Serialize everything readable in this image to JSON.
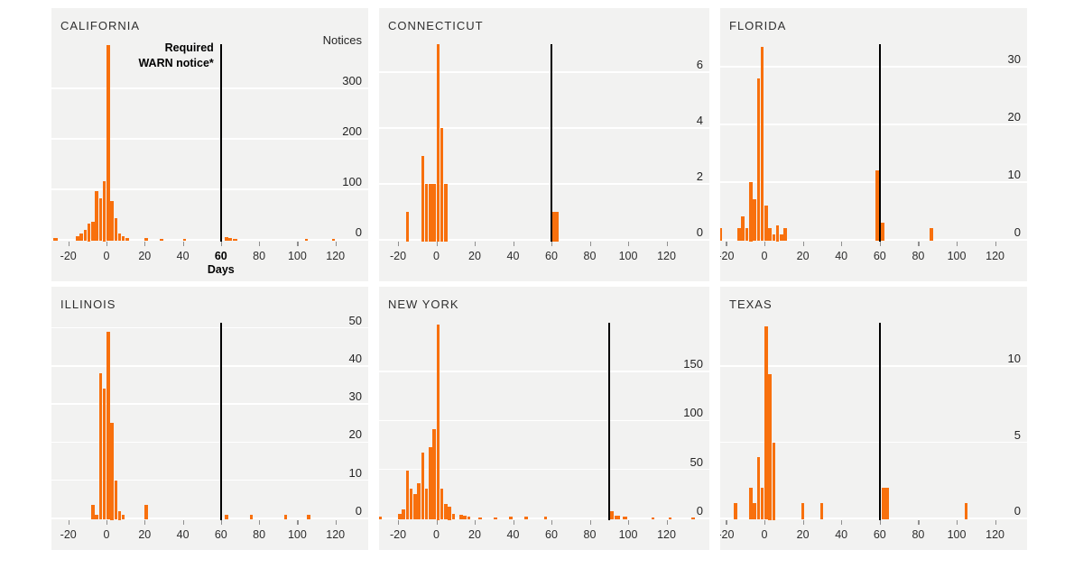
{
  "chart_data": {
    "type": "histogram-small-multiples",
    "description": "Distribution of days of advance notice given, by state, vs required WARN notice deadline",
    "x_ticks": [
      -20,
      0,
      20,
      40,
      60,
      80,
      100,
      120
    ],
    "x_axis_unit_label": "Days",
    "y_axis_title": "Notices",
    "annotation": {
      "line1": "Required",
      "line2": "WARN notice*"
    },
    "colors": {
      "bar": "#f8700d",
      "deadline_line": "#000000",
      "panel_bg": "#f2f2f1",
      "grid": "#ffffff"
    },
    "xlim": [
      -30,
      135
    ],
    "legend": "none",
    "panels": [
      {
        "state": "CALIFORNIA",
        "vline_day": 60,
        "bold_tick": 60,
        "show_notices_title": true,
        "show_annotation": true,
        "show_days_label": true,
        "y_ticks": [
          0,
          100,
          200,
          300
        ],
        "bins": [
          [
            -28,
            3,
            3
          ],
          [
            -16,
            2,
            7
          ],
          [
            -14,
            2,
            13
          ],
          [
            -12,
            2,
            20
          ],
          [
            -10,
            2,
            33
          ],
          [
            -8,
            2,
            35
          ],
          [
            -6,
            2,
            97
          ],
          [
            -4,
            2,
            82
          ],
          [
            -2,
            2,
            117
          ],
          [
            0,
            2,
            385
          ],
          [
            2,
            2,
            76
          ],
          [
            4,
            2,
            43
          ],
          [
            6,
            2,
            13
          ],
          [
            8,
            2,
            7
          ],
          [
            10,
            2,
            4
          ],
          [
            20,
            2,
            3
          ],
          [
            28,
            2,
            2
          ],
          [
            40,
            2,
            2
          ],
          [
            62,
            2,
            5
          ],
          [
            64,
            2,
            3
          ],
          [
            66,
            3,
            2
          ],
          [
            104,
            2,
            2
          ],
          [
            118,
            2,
            1
          ]
        ]
      },
      {
        "state": "CONNECTICUT",
        "vline_day": 60,
        "bold_tick": null,
        "show_notices_title": false,
        "show_annotation": false,
        "show_days_label": false,
        "y_ticks": [
          0,
          2,
          4,
          6
        ],
        "bins": [
          [
            -16,
            2,
            1
          ],
          [
            -8,
            2,
            3
          ],
          [
            -6,
            2,
            2
          ],
          [
            -4,
            2,
            2
          ],
          [
            -2,
            2,
            2
          ],
          [
            0,
            2,
            7
          ],
          [
            2,
            2,
            4
          ],
          [
            4,
            2,
            2
          ],
          [
            60.5,
            3.5,
            1
          ]
        ]
      },
      {
        "state": "FLORIDA",
        "vline_day": 60,
        "bold_tick": null,
        "show_notices_title": false,
        "show_annotation": false,
        "show_days_label": false,
        "y_ticks": [
          0,
          10,
          20,
          30
        ],
        "bins": [
          [
            -24,
            2,
            2
          ],
          [
            -14,
            2,
            2
          ],
          [
            -12,
            2,
            4
          ],
          [
            -10,
            2,
            2
          ],
          [
            -8,
            2,
            10
          ],
          [
            -6,
            2,
            7
          ],
          [
            -4,
            2,
            28
          ],
          [
            -2,
            2,
            33.5
          ],
          [
            0,
            2,
            6
          ],
          [
            2,
            2,
            2
          ],
          [
            4,
            2,
            1
          ],
          [
            6,
            2,
            2.5
          ],
          [
            8,
            2,
            1
          ],
          [
            10,
            2,
            2
          ],
          [
            57.6,
            2.4,
            12
          ],
          [
            60.2,
            2.6,
            3
          ],
          [
            86,
            2,
            2
          ]
        ]
      },
      {
        "state": "ILLINOIS",
        "vline_day": 60,
        "bold_tick": null,
        "show_notices_title": false,
        "show_annotation": false,
        "show_days_label": false,
        "y_ticks": [
          0,
          10,
          20,
          30,
          40,
          50
        ],
        "bins": [
          [
            -8,
            2,
            3.5
          ],
          [
            -6,
            2,
            1
          ],
          [
            -4,
            2,
            38
          ],
          [
            -2,
            2,
            34
          ],
          [
            0,
            2,
            49
          ],
          [
            2,
            2,
            25
          ],
          [
            4,
            2,
            10
          ],
          [
            6,
            2,
            2
          ],
          [
            8,
            2,
            1
          ],
          [
            20,
            2,
            3.5
          ],
          [
            62,
            2,
            1
          ],
          [
            75,
            2,
            1
          ],
          [
            93,
            2,
            1
          ],
          [
            105,
            2,
            1
          ]
        ]
      },
      {
        "state": "NEW YORK",
        "vline_day": 90,
        "bold_tick": null,
        "show_notices_title": false,
        "show_annotation": false,
        "show_days_label": false,
        "y_ticks": [
          0,
          50,
          100,
          150
        ],
        "bins": [
          [
            -30,
            2,
            2
          ],
          [
            -20,
            2,
            5
          ],
          [
            -18,
            2,
            9
          ],
          [
            -16,
            2,
            49
          ],
          [
            -14,
            2,
            30
          ],
          [
            -12,
            2,
            25
          ],
          [
            -10,
            2,
            36
          ],
          [
            -8,
            2,
            67
          ],
          [
            -6,
            2,
            30
          ],
          [
            -4,
            2,
            73
          ],
          [
            -2,
            2,
            91
          ],
          [
            0,
            2,
            198
          ],
          [
            2,
            2,
            30
          ],
          [
            4,
            2,
            15
          ],
          [
            6,
            2,
            12
          ],
          [
            8,
            2,
            5
          ],
          [
            12,
            2,
            4
          ],
          [
            14,
            2,
            3
          ],
          [
            16,
            2,
            2
          ],
          [
            22,
            2,
            1
          ],
          [
            30,
            2,
            1
          ],
          [
            38,
            2,
            2
          ],
          [
            46,
            2,
            2
          ],
          [
            56,
            2,
            2
          ],
          [
            90.8,
            2,
            7
          ],
          [
            93,
            3,
            3
          ],
          [
            97,
            3,
            2
          ],
          [
            112,
            2,
            1
          ],
          [
            121,
            2,
            1
          ],
          [
            133,
            2,
            1
          ]
        ]
      },
      {
        "state": "TEXAS",
        "vline_day": 60,
        "bold_tick": null,
        "show_notices_title": false,
        "show_annotation": false,
        "show_days_label": false,
        "y_ticks": [
          0,
          5,
          10
        ],
        "bins": [
          [
            -16,
            2,
            1
          ],
          [
            -8,
            2,
            2
          ],
          [
            -6,
            2,
            1
          ],
          [
            -4,
            2,
            4
          ],
          [
            -2,
            2,
            2
          ],
          [
            0,
            2,
            12.6
          ],
          [
            2,
            2,
            9.5
          ],
          [
            4,
            2,
            5
          ],
          [
            19,
            2,
            1
          ],
          [
            29,
            2,
            1
          ],
          [
            61,
            4,
            2
          ],
          [
            104,
            2,
            1
          ]
        ]
      }
    ]
  }
}
